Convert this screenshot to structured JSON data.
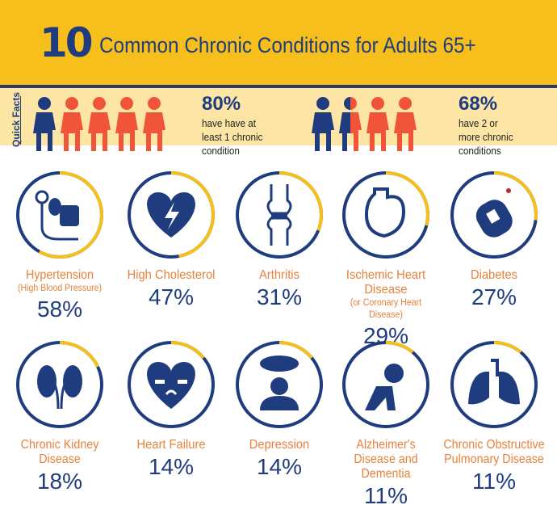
{
  "header": {
    "number": "10",
    "title": "Common Chronic Conditions for Adults 65+"
  },
  "quick_facts": {
    "label": "Quick Facts",
    "facts": [
      {
        "percent": "80%",
        "text": "have have at least 1 chronic condition",
        "value": 80
      },
      {
        "percent": "68%",
        "text": "have 2 or more chronic conditions",
        "value": 68
      }
    ]
  },
  "colors": {
    "navy": "#1F3C7E",
    "yellow": "#F6BF1C",
    "orange": "#E8823A",
    "red": "#F0553A"
  },
  "conditions": [
    {
      "label": "Hypertension",
      "sub": "(High Blood Pressure)",
      "percent": "58%",
      "value": 58,
      "icon": "blood-pressure-monitor-icon"
    },
    {
      "label": "High Cholesterol",
      "sub": "",
      "percent": "47%",
      "value": 47,
      "icon": "broken-heart-icon"
    },
    {
      "label": "Arthritis",
      "sub": "",
      "percent": "31%",
      "value": 31,
      "icon": "knee-joint-icon"
    },
    {
      "label": "Ischemic Heart Disease",
      "sub": "(or Coronary Heart Disease)",
      "percent": "29%",
      "value": 29,
      "icon": "heart-organ-icon"
    },
    {
      "label": "Diabetes",
      "sub": "",
      "percent": "27%",
      "value": 27,
      "icon": "glucose-meter-icon"
    },
    {
      "label": "Chronic Kidney Disease",
      "sub": "",
      "percent": "18%",
      "value": 18,
      "icon": "kidneys-icon"
    },
    {
      "label": "Heart Failure",
      "sub": "",
      "percent": "14%",
      "value": 14,
      "icon": "sad-heart-icon"
    },
    {
      "label": "Depression",
      "sub": "",
      "percent": "14%",
      "value": 14,
      "icon": "person-cloud-icon"
    },
    {
      "label": "Alzheimer's Disease and Dementia",
      "sub": "",
      "percent": "11%",
      "value": 11,
      "icon": "head-in-hand-icon"
    },
    {
      "label": "Chronic Obstructive Pulmonary Disease",
      "sub": "",
      "percent": "11%",
      "value": 11,
      "icon": "lungs-icon"
    }
  ]
}
